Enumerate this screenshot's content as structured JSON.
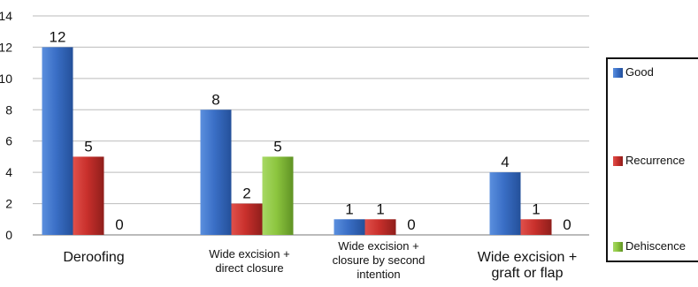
{
  "chart_data": {
    "type": "bar",
    "title": "",
    "xlabel": "",
    "ylabel": "",
    "ylim": [
      0,
      14
    ],
    "yticks": [
      0,
      2,
      4,
      6,
      8,
      10,
      12,
      14
    ],
    "grid": true,
    "legend_position": "right",
    "categories": [
      [
        "Deroofing"
      ],
      [
        "Wide excision +",
        "direct closure"
      ],
      [
        "Wide excision +",
        "closure by second",
        "intention"
      ],
      [
        "Wide excision +",
        "graft or flap"
      ]
    ],
    "series": [
      {
        "name": "Good",
        "values": [
          12,
          8,
          1,
          4
        ],
        "color": "#3a6fc6"
      },
      {
        "name": "Recurrence",
        "values": [
          5,
          2,
          1,
          1
        ],
        "color": "#c9302c"
      },
      {
        "name": "Dehiscence",
        "values": [
          0,
          5,
          0,
          0
        ],
        "color": "#8dc63f"
      }
    ]
  }
}
